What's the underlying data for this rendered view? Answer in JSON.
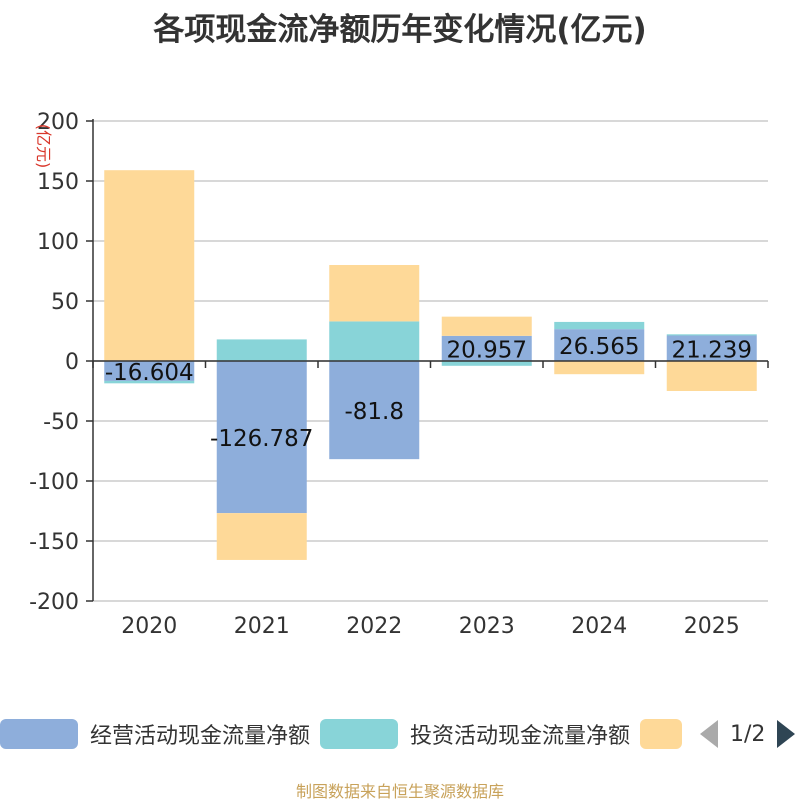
{
  "title": "各项现金流净额历年变化情况(亿元)",
  "source": "制图数据来自恒生聚源数据库",
  "legend": {
    "items": [
      {
        "label": "经营活动现金流量净额",
        "color": "#8eaedb"
      },
      {
        "label": "投资活动现金流量净额",
        "color": "#88d4d8"
      },
      {
        "label": "",
        "color": "#fed998"
      }
    ],
    "page": "1/2"
  },
  "chart_data": {
    "type": "bar",
    "stacked": true,
    "categories": [
      "2020",
      "2021",
      "2022",
      "2023",
      "2024",
      "2025"
    ],
    "ylabel": "(亿元)",
    "ylim": [
      -200,
      200
    ],
    "yticks": [
      200,
      150,
      100,
      50,
      0,
      -50,
      -100,
      -150,
      -200
    ],
    "grid": true,
    "legend_position": "bottom",
    "series": [
      {
        "name": "经营活动现金流量净额",
        "color": "#8eaedb",
        "values": [
          -16.604,
          -126.787,
          -81.8,
          20.957,
          26.565,
          21.239
        ],
        "labels": [
          "-16.604",
          "-126.787",
          "-81.8",
          "20.957",
          "26.565",
          "21.239"
        ]
      },
      {
        "name": "投资活动现金流量净额",
        "color": "#88d4d8",
        "values": [
          -2,
          18,
          33,
          -4,
          6,
          1
        ]
      },
      {
        "name": "",
        "color": "#fed998",
        "values": [
          159,
          -39,
          47,
          16,
          -11,
          -25
        ]
      }
    ]
  }
}
